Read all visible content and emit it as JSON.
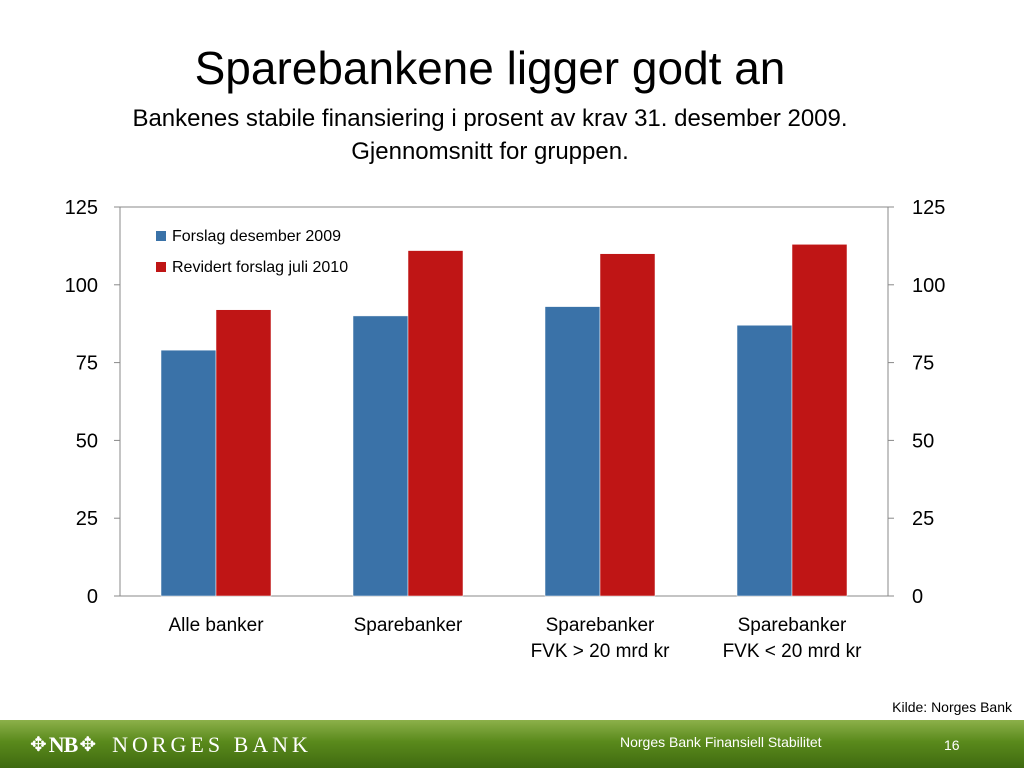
{
  "slide": {
    "title": "Sparebankene ligger godt an",
    "subtitle_line1": "Bankenes stabile finansiering i prosent av krav 31. desember 2009.",
    "subtitle_line2": "Gjennomsnitt for gruppen.",
    "source": "Kilde: Norges Bank",
    "footer_text": "Norges Bank Finansiell Stabilitet",
    "page_number": "16",
    "logo_mark": "NB",
    "logo_name": "NORGES BANK"
  },
  "colors": {
    "series1": "#3a72a8",
    "series2": "#bf1515",
    "footer": "#5a8a1c"
  },
  "chart_data": {
    "type": "bar",
    "title": "",
    "xlabel": "",
    "ylabel": "",
    "ylim": [
      0,
      125
    ],
    "yticks": [
      0,
      25,
      50,
      75,
      100,
      125
    ],
    "secondary_y": true,
    "grid": false,
    "legend_position": "top-left",
    "categories": [
      [
        "Alle banker"
      ],
      [
        "Sparebanker"
      ],
      [
        "Sparebanker",
        "FVK > 20 mrd kr"
      ],
      [
        "Sparebanker",
        "FVK < 20 mrd kr"
      ]
    ],
    "series": [
      {
        "name": "Forslag desember 2009",
        "values": [
          79,
          90,
          93,
          87
        ]
      },
      {
        "name": "Revidert forslag juli 2010",
        "values": [
          92,
          111,
          110,
          113
        ]
      }
    ]
  }
}
